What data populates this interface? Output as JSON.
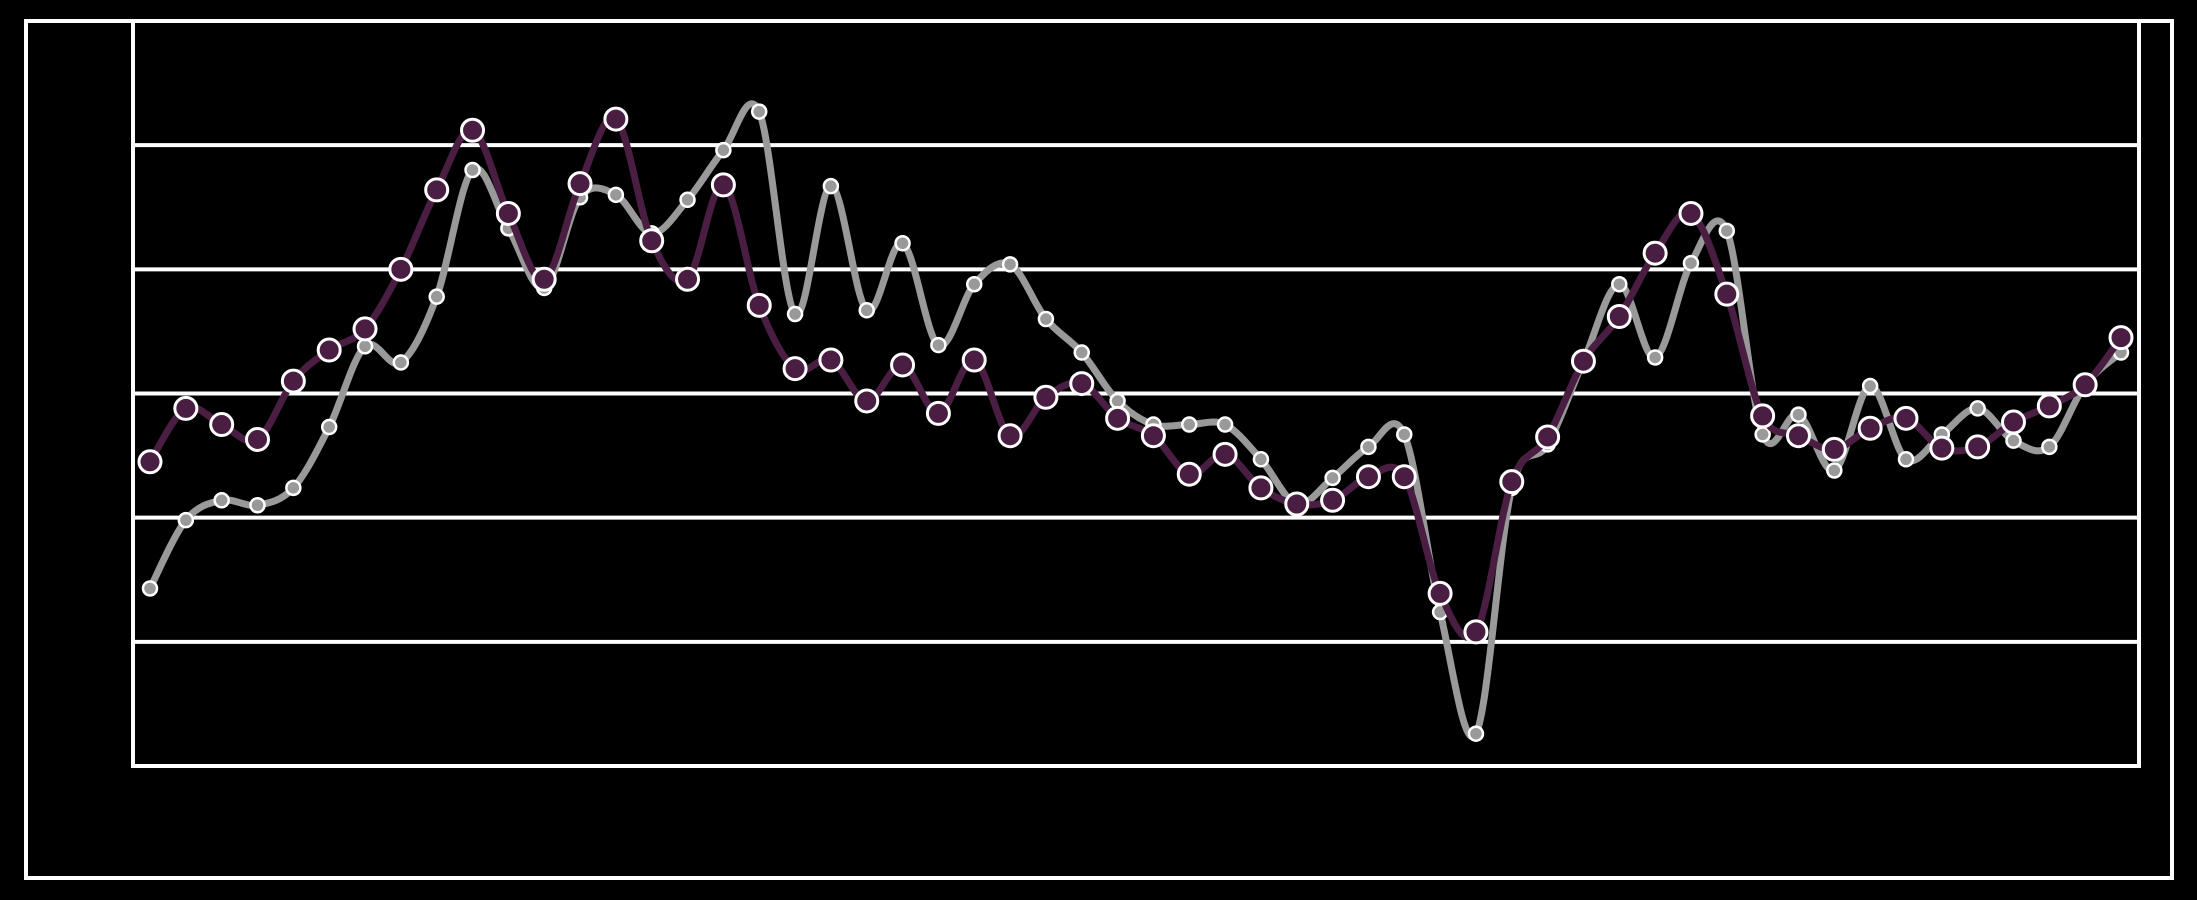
{
  "chart_data": {
    "type": "line",
    "series": [
      {
        "color": "#999999",
        "marker_color": "#999999",
        "values": [
          1.43,
          1.98,
          2.14,
          2.1,
          2.24,
          2.73,
          3.38,
          3.25,
          3.78,
          4.8,
          4.33,
          3.85,
          4.58,
          4.6,
          4.29,
          4.56,
          4.96,
          5.27,
          3.64,
          4.67,
          3.67,
          4.21,
          3.39,
          3.88,
          4.04,
          3.6,
          3.33,
          2.94,
          2.75,
          2.75,
          2.75,
          2.47,
          2.11,
          2.32,
          2.57,
          2.67,
          1.24,
          0.26,
          2.24,
          2.59,
          3.26,
          3.88,
          3.29,
          4.05,
          4.31,
          2.67,
          2.83,
          2.38,
          3.06,
          2.47,
          2.67,
          2.88,
          2.62,
          2.57,
          3.07,
          3.33
        ]
      },
      {
        "color": "#4a1d42",
        "marker_color": "#4a1d42",
        "values": [
          2.45,
          2.88,
          2.75,
          2.63,
          3.1,
          3.35,
          3.52,
          4.0,
          4.64,
          5.12,
          4.45,
          3.92,
          4.69,
          5.21,
          4.23,
          3.92,
          4.68,
          3.71,
          3.2,
          3.27,
          2.94,
          3.23,
          2.84,
          3.27,
          2.66,
          2.97,
          3.08,
          2.8,
          2.66,
          2.35,
          2.51,
          2.24,
          2.11,
          2.14,
          2.33,
          2.33,
          1.39,
          1.08,
          2.29,
          2.65,
          3.26,
          3.62,
          4.13,
          4.45,
          3.8,
          2.82,
          2.66,
          2.55,
          2.72,
          2.8,
          2.56,
          2.57,
          2.77,
          2.9,
          3.07,
          3.45
        ]
      }
    ],
    "ylim": [
      0,
      6
    ],
    "yticks": [
      1,
      2,
      3,
      4,
      5
    ],
    "grid": true
  }
}
